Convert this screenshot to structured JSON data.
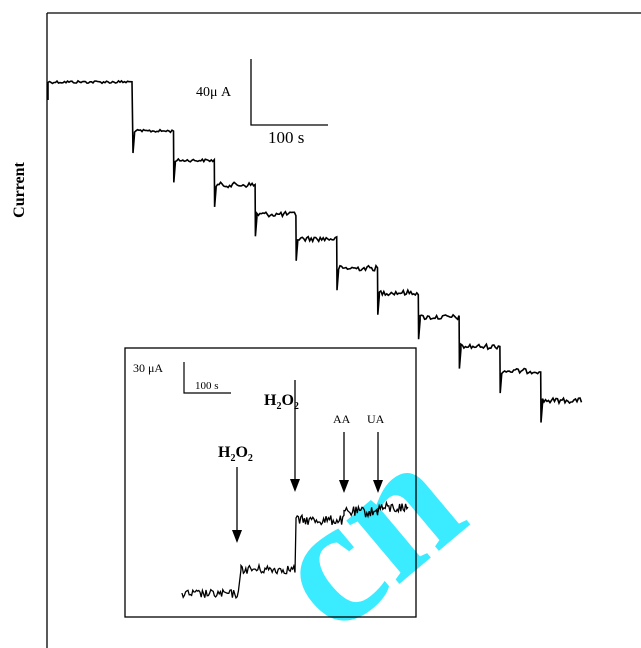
{
  "chart_data": [
    {
      "type": "line",
      "title": "",
      "xlabel": "",
      "ylabel": "Current",
      "series": [
        {
          "step_current_levels": [
            0,
            -20,
            -32,
            -42,
            -54,
            -64,
            -76,
            -86,
            -96,
            -108,
            -118,
            -130
          ]
        }
      ],
      "scale_bar": {
        "y_label": "40μ A",
        "x_label": "100 s"
      },
      "grid": false
    },
    {
      "type": "line",
      "title": "",
      "xlabel": "",
      "ylabel": "",
      "series": [
        {
          "current_levels": [
            0,
            6,
            18,
            20,
            21
          ]
        }
      ],
      "annotations": [
        "H2O2",
        "H2O2",
        "AA",
        "UA"
      ],
      "scale_bar": {
        "y_label": "30 μA",
        "x_label": "100 s"
      },
      "grid": false
    }
  ],
  "labels": {
    "ylabel": "Current",
    "main_scale_y": "40μ A",
    "main_scale_x": "100 s",
    "inset_scale_y": "30 μA",
    "inset_scale_x": "100 s",
    "h2o2_sub": "2",
    "h2o2_H": "H",
    "h2o2_O": "O",
    "aa": "AA",
    "ua": "UA"
  },
  "watermark": "cn",
  "colors": {
    "trace": "#000000",
    "watermark": "#00e5ff"
  }
}
